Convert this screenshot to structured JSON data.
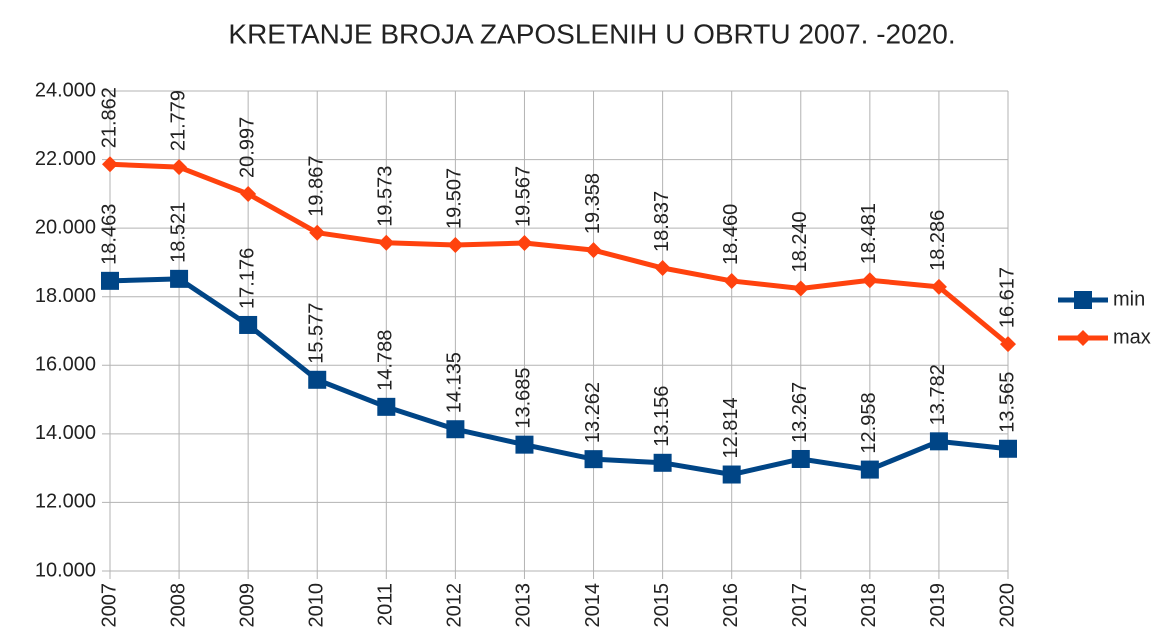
{
  "chart_data": {
    "type": "line",
    "title": "KRETANJE BROJA ZAPOSLENIH U OBRTU 2007. -2020.",
    "categories": [
      "2007",
      "2008",
      "2009",
      "2010",
      "2011",
      "2012",
      "2013",
      "2014",
      "2015",
      "2016",
      "2017",
      "2018",
      "2019",
      "2020"
    ],
    "series": [
      {
        "name": "min",
        "color": "#004586",
        "marker": "square",
        "values": [
          18463,
          18521,
          17176,
          15577,
          14788,
          14135,
          13685,
          13262,
          13156,
          12814,
          13267,
          12958,
          13782,
          13565
        ],
        "value_labels": [
          "18.463",
          "18.521",
          "17.176",
          "15.577",
          "14.788",
          "14.135",
          "13.685",
          "13.262",
          "13.156",
          "12.814",
          "13.267",
          "12.958",
          "13.782",
          "13.565"
        ]
      },
      {
        "name": "max",
        "color": "#ff420e",
        "marker": "diamond",
        "values": [
          21862,
          21779,
          20997,
          19867,
          19573,
          19507,
          19567,
          19358,
          18837,
          18460,
          18240,
          18481,
          18286,
          16617
        ],
        "value_labels": [
          "21.862",
          "21.779",
          "20.997",
          "19.867",
          "19.573",
          "19.507",
          "19.567",
          "19.358",
          "18.837",
          "18.460",
          "18.240",
          "18.481",
          "18.286",
          "16.617"
        ]
      }
    ],
    "ylim": [
      10000,
      24000
    ],
    "yticks": [
      {
        "value": 10000,
        "label": "10.000"
      },
      {
        "value": 12000,
        "label": "12.000"
      },
      {
        "value": 14000,
        "label": "14.000"
      },
      {
        "value": 16000,
        "label": "16.000"
      },
      {
        "value": 18000,
        "label": "18.000"
      },
      {
        "value": 20000,
        "label": "20.000"
      },
      {
        "value": 22000,
        "label": "22.000"
      },
      {
        "value": 24000,
        "label": "24.000"
      }
    ],
    "grid": true,
    "legend": "right"
  }
}
